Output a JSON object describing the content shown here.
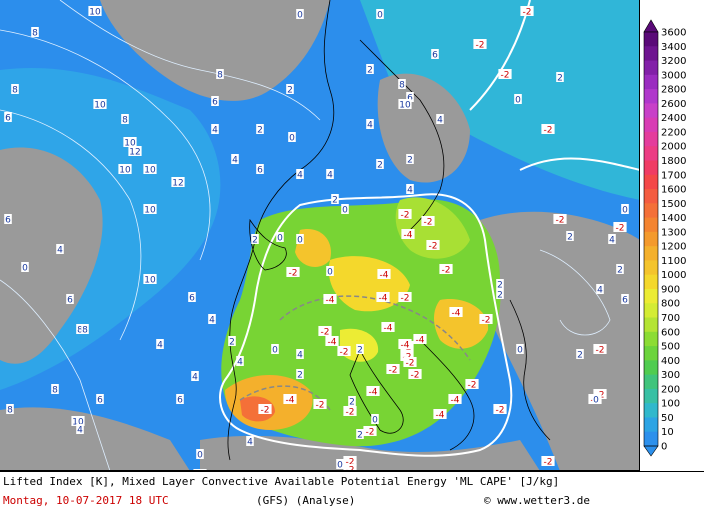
{
  "footer": {
    "title": "Lifted Index [K], Mixed Layer Convective Available Potential Energy 'ML CAPE' [J/kg]",
    "date": "Montag, 10-07-2017  18 UTC",
    "model": "(GFS)  (Analyse)",
    "site": "© www.wetter3.de"
  },
  "legend": {
    "levels": [
      "3600",
      "3400",
      "3200",
      "3000",
      "2800",
      "2600",
      "2400",
      "2200",
      "2000",
      "1800",
      "1700",
      "1600",
      "1500",
      "1400",
      "1300",
      "1200",
      "1100",
      "1000",
      "900",
      "800",
      "700",
      "600",
      "500",
      "400",
      "300",
      "200",
      "100",
      "50",
      "10",
      "0"
    ],
    "colors": [
      "#5a0a78",
      "#6e1490",
      "#8220a8",
      "#9a2cc0",
      "#b038cc",
      "#c840c8",
      "#d83cb4",
      "#e43c9c",
      "#ec3c84",
      "#f03c64",
      "#f44848",
      "#f45c40",
      "#f47038",
      "#f48430",
      "#f49a2c",
      "#f4b02c",
      "#f4c42c",
      "#f4d82c",
      "#ecec34",
      "#d4ec34",
      "#b4e434",
      "#8cdc34",
      "#6cd43c",
      "#50cc50",
      "#40c47c",
      "#38c0a4",
      "#30b8cc",
      "#2ca4e4",
      "#2c90ec"
    ]
  },
  "map_labels": [
    {
      "t": "10"
    },
    {
      "t": "8"
    },
    {
      "t": "6"
    },
    {
      "t": "8"
    },
    {
      "t": "8"
    },
    {
      "t": "10"
    },
    {
      "t": "10"
    },
    {
      "t": "12"
    },
    {
      "t": "10"
    },
    {
      "t": "10"
    },
    {
      "t": "12"
    },
    {
      "t": "10"
    },
    {
      "t": "8"
    },
    {
      "t": "6"
    },
    {
      "t": "4"
    },
    {
      "t": "4"
    },
    {
      "t": "2"
    },
    {
      "t": "0"
    },
    {
      "t": "2"
    },
    {
      "t": "0"
    },
    {
      "t": "2"
    },
    {
      "t": "4"
    },
    {
      "t": "2"
    },
    {
      "t": "4"
    },
    {
      "t": "6"
    },
    {
      "t": "6"
    },
    {
      "t": "8"
    },
    {
      "t": "10"
    },
    {
      "t": "2"
    },
    {
      "t": "4"
    },
    {
      "t": "6"
    },
    {
      "t": "0"
    },
    {
      "t": "4"
    },
    {
      "t": "2"
    },
    {
      "t": "4"
    },
    {
      "t": "0"
    },
    {
      "t": "-2"
    },
    {
      "t": "-2"
    },
    {
      "t": "-2"
    },
    {
      "t": "2"
    },
    {
      "t": "0"
    },
    {
      "t": "-2"
    },
    {
      "t": "-2"
    },
    {
      "t": "-2"
    },
    {
      "t": "0"
    },
    {
      "t": "-2"
    },
    {
      "t": "0"
    },
    {
      "t": "-4"
    },
    {
      "t": "-4"
    },
    {
      "t": "-2"
    },
    {
      "t": "-2"
    },
    {
      "t": "-4"
    },
    {
      "t": "-2"
    },
    {
      "t": "-4"
    },
    {
      "t": "-2"
    },
    {
      "t": "-4"
    },
    {
      "t": "-2"
    },
    {
      "t": "-2"
    },
    {
      "t": "-4"
    },
    {
      "t": "-4"
    },
    {
      "t": "-2"
    },
    {
      "t": "-4"
    },
    {
      "t": "-2"
    },
    {
      "t": "-2"
    },
    {
      "t": "-2"
    },
    {
      "t": "-4"
    },
    {
      "t": "-4"
    },
    {
      "t": "-2"
    },
    {
      "t": "-4"
    },
    {
      "t": "-2"
    },
    {
      "t": "-2"
    },
    {
      "t": "-4"
    },
    {
      "t": "-2"
    },
    {
      "t": "-2"
    },
    {
      "t": "-4"
    },
    {
      "t": "-2"
    },
    {
      "t": "-2"
    },
    {
      "t": "-2"
    },
    {
      "t": "0"
    },
    {
      "t": "0"
    },
    {
      "t": "-2"
    },
    {
      "t": "-2"
    },
    {
      "t": "2"
    },
    {
      "t": "4"
    },
    {
      "t": "2"
    },
    {
      "t": "4"
    },
    {
      "t": "4"
    },
    {
      "t": "2"
    },
    {
      "t": "0"
    },
    {
      "t": "2"
    },
    {
      "t": "4"
    },
    {
      "t": "0"
    },
    {
      "t": "2"
    },
    {
      "t": "4"
    },
    {
      "t": "6"
    },
    {
      "t": "8"
    },
    {
      "t": "6"
    },
    {
      "t": "4"
    },
    {
      "t": "6"
    },
    {
      "t": "8"
    },
    {
      "t": "10"
    },
    {
      "t": "0"
    },
    {
      "t": "4"
    },
    {
      "t": "6"
    },
    {
      "t": "8"
    },
    {
      "t": "10"
    },
    {
      "t": "8"
    },
    {
      "t": "6"
    },
    {
      "t": "4"
    },
    {
      "t": "2"
    },
    {
      "t": "0"
    },
    {
      "t": "-2"
    },
    {
      "t": "-2"
    },
    {
      "t": "-2"
    },
    {
      "t": "-2"
    },
    {
      "t": "-2"
    },
    {
      "t": "-2"
    },
    {
      "t": "0"
    },
    {
      "t": "2"
    },
    {
      "t": "4"
    },
    {
      "t": "2"
    },
    {
      "t": "0"
    },
    {
      "t": "0"
    },
    {
      "t": "2"
    },
    {
      "t": "2"
    },
    {
      "t": "4"
    },
    {
      "t": "2"
    },
    {
      "t": "6"
    }
  ]
}
